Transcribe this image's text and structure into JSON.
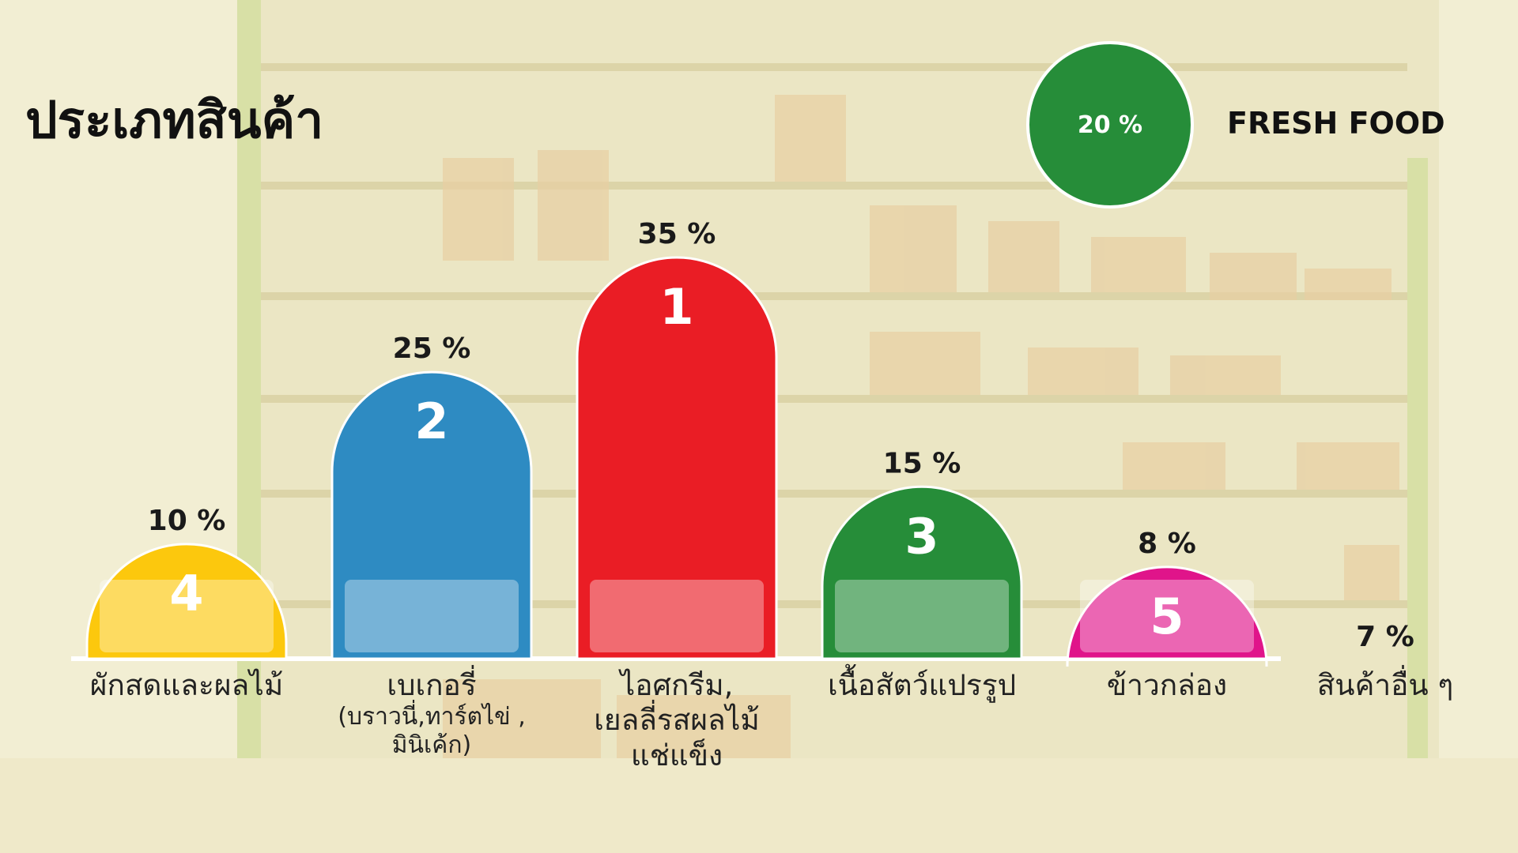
{
  "page": {
    "title": "ประเภทสินค้า"
  },
  "legend": {
    "circle_text": "20 %",
    "label": "FRESH FOOD",
    "color": "#268d39"
  },
  "chart_data": {
    "type": "bar",
    "title": "ประเภทสินค้า",
    "ylim": [
      0,
      35
    ],
    "grid": false,
    "legend_placement": "top-right",
    "bars": [
      {
        "id": "fresh",
        "rank": "4",
        "value": 10,
        "value_label": "10 %",
        "color": "#fcc80d",
        "label": [
          "ผักสดและผลไม้"
        ],
        "sub": []
      },
      {
        "id": "bakery",
        "rank": "2",
        "value": 25,
        "value_label": "25 %",
        "color": "#2e8bc2",
        "label": [
          "เบเกอรี่"
        ],
        "sub": [
          "(บราวนี่,ทาร์ตไข่ ,",
          "มินิเค้ก)"
        ]
      },
      {
        "id": "icecream",
        "rank": "1",
        "value": 35,
        "value_label": "35 %",
        "color": "#ea1d25",
        "label": [
          "ไอศกรีม,",
          "เยลลี่รสผลไม้",
          "แช่แข็ง"
        ],
        "sub": []
      },
      {
        "id": "meat",
        "rank": "3",
        "value": 15,
        "value_label": "15 %",
        "color": "#268d39",
        "label": [
          "เนื้อสัตว์แปรรูป"
        ],
        "sub": []
      },
      {
        "id": "rice",
        "rank": "5",
        "value": 8,
        "value_label": "8 %",
        "color": "#e0148a",
        "label": [
          "ข้าวกล่อง"
        ],
        "sub": []
      }
    ],
    "other": {
      "value": 7,
      "value_label": "7 %",
      "label": "สินค้าอื่น ๆ"
    }
  }
}
